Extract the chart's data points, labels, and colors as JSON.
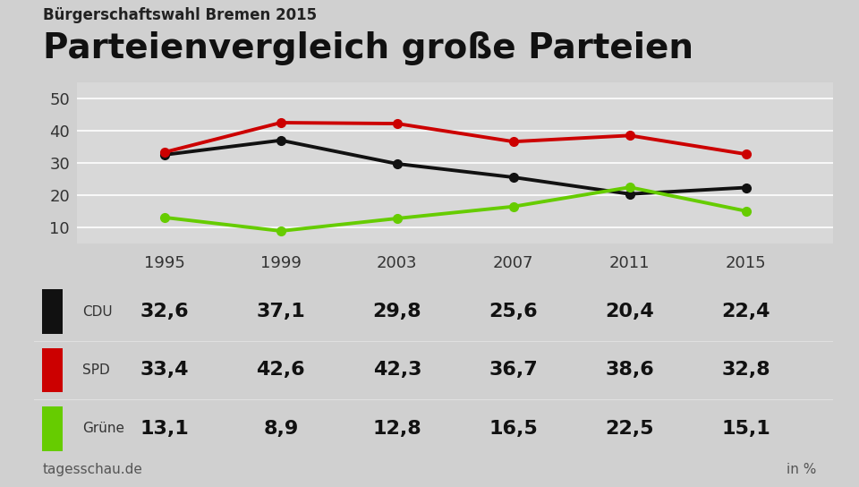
{
  "subtitle": "Bürgerschaftswahl Bremen 2015",
  "title": "Parteienvergleich große Parteien",
  "years": [
    1995,
    1999,
    2003,
    2007,
    2011,
    2015
  ],
  "series": [
    {
      "name": "CDU",
      "color": "#111111",
      "values": [
        32.6,
        37.1,
        29.8,
        25.6,
        20.4,
        22.4
      ]
    },
    {
      "name": "SPD",
      "color": "#cc0000",
      "values": [
        33.4,
        42.6,
        42.3,
        36.7,
        38.6,
        32.8
      ]
    },
    {
      "name": "Grüne",
      "color": "#66cc00",
      "values": [
        13.1,
        8.9,
        12.8,
        16.5,
        22.5,
        15.1
      ]
    }
  ],
  "ylim": [
    5,
    55
  ],
  "yticks": [
    10,
    20,
    30,
    40,
    50
  ],
  "source": "tagesschau.de",
  "unit": "in %",
  "bg_color": "#d0d0d0",
  "plot_bg_color": "#d8d8d8",
  "table_bg_color": "#ffffff",
  "subtitle_fontsize": 12,
  "title_fontsize": 28,
  "value_fontsize": 16,
  "label_fontsize": 11,
  "source_fontsize": 11,
  "axis_label_fontsize": 13
}
